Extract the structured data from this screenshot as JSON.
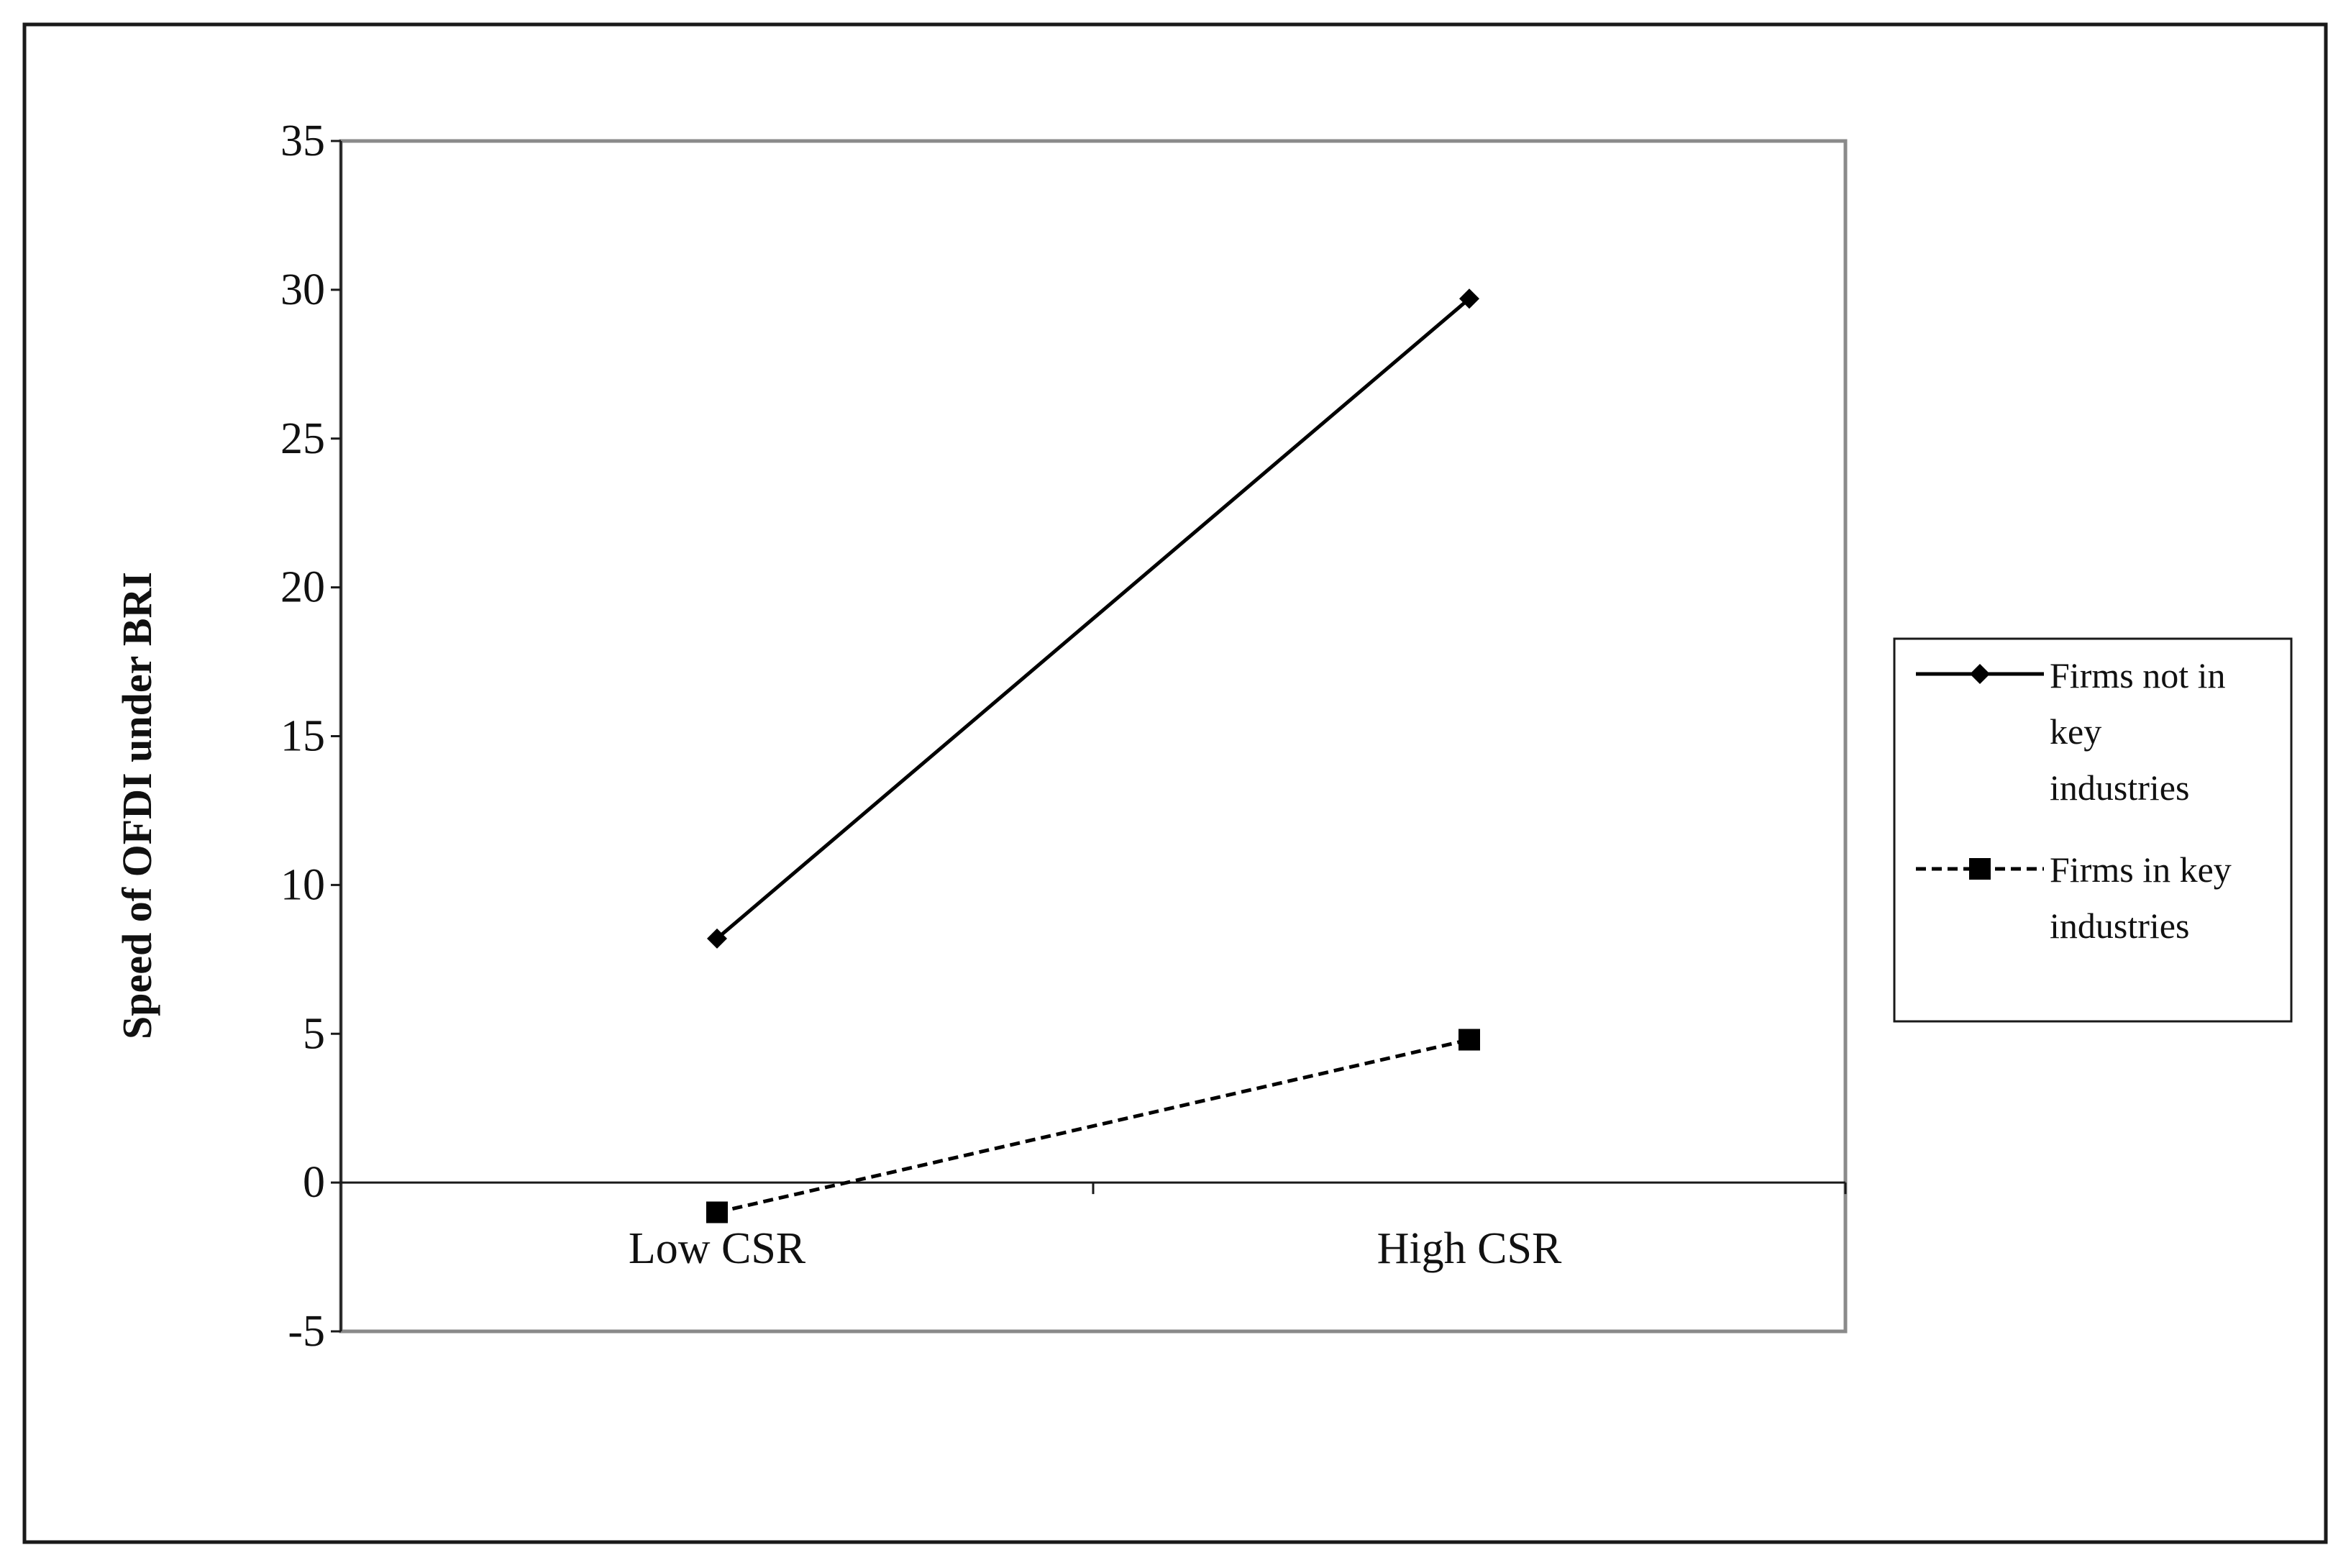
{
  "chart_data": {
    "type": "line",
    "title": "",
    "xlabel": "",
    "ylabel": "Speed of OFDI under BRI",
    "categories": [
      "Low CSR",
      "High CSR"
    ],
    "ylim": [
      -5,
      35
    ],
    "yticks": [
      "-5",
      "0",
      "5",
      "10",
      "15",
      "20",
      "25",
      "30",
      "35"
    ],
    "grid": false,
    "legend_position": "right",
    "series": [
      {
        "name": "Firms not in key industries",
        "legend_lines": [
          "Firms not in",
          "key",
          "industries"
        ],
        "values": [
          8.2,
          29.7
        ],
        "marker": "diamond",
        "line_style": "solid",
        "color": "#000000"
      },
      {
        "name": "Firms in key industries",
        "legend_lines": [
          "Firms in key",
          "industries"
        ],
        "values": [
          -1.0,
          4.8
        ],
        "marker": "square",
        "line_style": "dashed",
        "color": "#000000"
      }
    ]
  }
}
